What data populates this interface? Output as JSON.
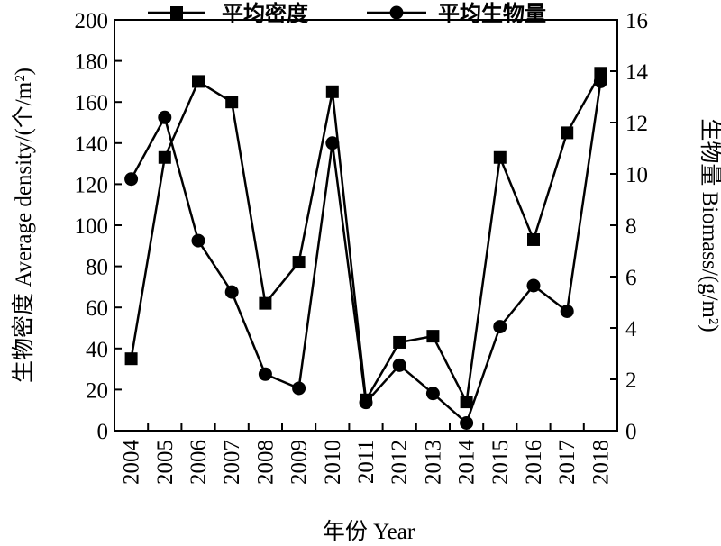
{
  "chart_data": {
    "type": "line",
    "categories": [
      "2004",
      "2005",
      "2006",
      "2007",
      "2008",
      "2009",
      "2010",
      "2011",
      "2012",
      "2013",
      "2014",
      "2015",
      "2016",
      "2017",
      "2018"
    ],
    "series": [
      {
        "name": "平均密度",
        "axis": "left",
        "marker": "square",
        "values": [
          35,
          133,
          170,
          160,
          62,
          82,
          165,
          15,
          43,
          46,
          14,
          133,
          93,
          145,
          174
        ]
      },
      {
        "name": "平均生物量",
        "axis": "right",
        "marker": "circle",
        "values": [
          9.8,
          12.2,
          7.4,
          5.4,
          2.2,
          1.65,
          11.2,
          1.1,
          2.55,
          1.45,
          0.3,
          4.05,
          5.65,
          4.65,
          13.6
        ]
      }
    ],
    "xlabel": "年份 Year",
    "ylabel": "生物密度 Average density/(个/m²)",
    "y2label": "生物量 Biomass/(g/m²)",
    "ylim": [
      0,
      200
    ],
    "y2lim": [
      0,
      16
    ],
    "yticks": [
      "0",
      "20",
      "40",
      "60",
      "80",
      "100",
      "120",
      "140",
      "160",
      "180",
      "200"
    ],
    "y2ticks": [
      "0",
      "2",
      "4",
      "6",
      "8",
      "10",
      "12",
      "14",
      "16"
    ],
    "grid": false,
    "legend_position": "top"
  }
}
